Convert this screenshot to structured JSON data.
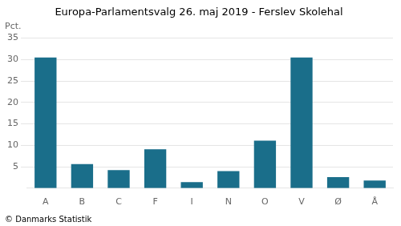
{
  "chart_data": {
    "type": "bar",
    "title": "Europa-Parlamentsvalg 26. maj 2019 - Ferslev Skolehal",
    "ylabel": "Pct.",
    "annotations": [
      "© Danmarks Statistik"
    ],
    "categories": [
      "A",
      "B",
      "C",
      "F",
      "I",
      "N",
      "O",
      "V",
      "Ø",
      "Å"
    ],
    "values": [
      30.5,
      5.6,
      4.2,
      9.1,
      1.4,
      4.0,
      11.1,
      30.5,
      2.6,
      1.8
    ],
    "color": "#1a6e8a",
    "ylim": [
      0,
      35
    ],
    "yticks": [
      5,
      10,
      15,
      20,
      25,
      30,
      35
    ],
    "grid": true
  }
}
